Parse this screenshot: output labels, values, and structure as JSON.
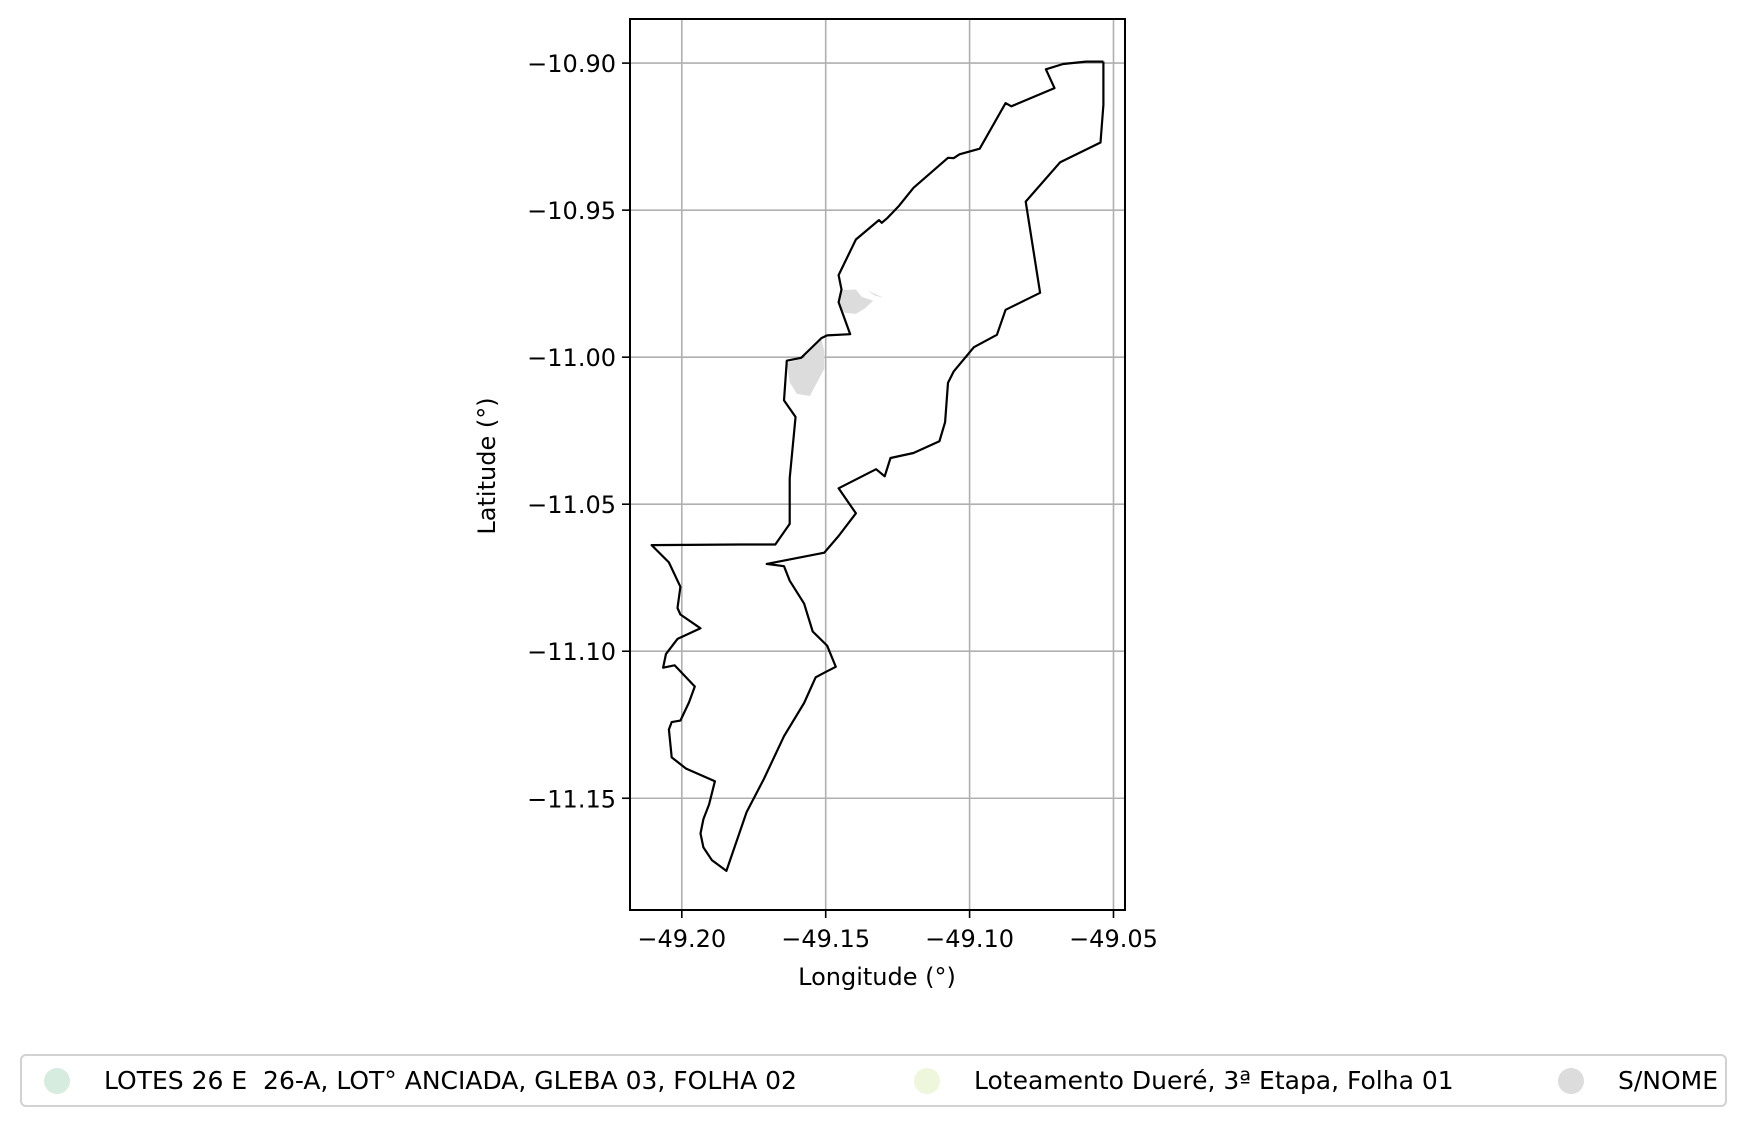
{
  "chart_data": {
    "type": "map",
    "xlabel": "Longitude (°)",
    "ylabel": "Latitude (°)",
    "xlim": [
      -49.218,
      -49.046
    ],
    "ylim": [
      -11.188,
      -10.885
    ],
    "grid": true,
    "x_ticks": [
      -49.2,
      -49.15,
      -49.1,
      -49.05
    ],
    "x_tick_labels": [
      "−49.20",
      "−49.15",
      "−49.10",
      "−49.05"
    ],
    "y_ticks": [
      -10.9,
      -10.95,
      -11.0,
      -11.05,
      -11.1,
      -11.15
    ],
    "y_tick_labels": [
      "−10.90",
      "−10.95",
      "−11.00",
      "−11.05",
      "−11.10",
      "−11.15"
    ],
    "boundary": [
      [
        -49.0535,
        -10.8995
      ],
      [
        -49.0535,
        -10.9142
      ],
      [
        -49.0545,
        -10.927
      ],
      [
        -49.0685,
        -10.9337
      ],
      [
        -49.0805,
        -10.9471
      ],
      [
        -49.0755,
        -10.9781
      ],
      [
        -49.0875,
        -10.9839
      ],
      [
        -49.0905,
        -10.9924
      ],
      [
        -49.0985,
        -10.9966
      ],
      [
        -49.1055,
        -11.0048
      ],
      [
        -49.1075,
        -11.0087
      ],
      [
        -49.1085,
        -11.0221
      ],
      [
        -49.1105,
        -11.0286
      ],
      [
        -49.1195,
        -11.0326
      ],
      [
        -49.1275,
        -11.0343
      ],
      [
        -49.1295,
        -11.0405
      ],
      [
        -49.1325,
        -11.0381
      ],
      [
        -49.1455,
        -11.0446
      ],
      [
        -49.1395,
        -11.0531
      ],
      [
        -49.1455,
        -11.0608
      ],
      [
        -49.1505,
        -11.0665
      ],
      [
        -49.1705,
        -11.0703
      ],
      [
        -49.1645,
        -11.0711
      ],
      [
        -49.1625,
        -11.076
      ],
      [
        -49.1575,
        -11.0838
      ],
      [
        -49.1545,
        -11.0933
      ],
      [
        -49.1495,
        -11.0981
      ],
      [
        -49.1465,
        -11.1053
      ],
      [
        -49.1505,
        -11.1073
      ],
      [
        -49.1535,
        -11.1089
      ],
      [
        -49.1575,
        -11.1176
      ],
      [
        -49.1645,
        -11.1289
      ],
      [
        -49.1715,
        -11.1435
      ],
      [
        -49.1775,
        -11.1547
      ],
      [
        -49.1845,
        -11.1747
      ],
      [
        -49.1895,
        -11.1711
      ],
      [
        -49.1925,
        -11.1667
      ],
      [
        -49.1935,
        -11.162
      ],
      [
        -49.1925,
        -11.1571
      ],
      [
        -49.1905,
        -11.1521
      ],
      [
        -49.1885,
        -11.1442
      ],
      [
        -49.1985,
        -11.1399
      ],
      [
        -49.2035,
        -11.1361
      ],
      [
        -49.2045,
        -11.1266
      ],
      [
        -49.2035,
        -11.1241
      ],
      [
        -49.2005,
        -11.1236
      ],
      [
        -49.1975,
        -11.1174
      ],
      [
        -49.1955,
        -11.112
      ],
      [
        -49.2025,
        -11.1048
      ],
      [
        -49.2065,
        -11.1056
      ],
      [
        -49.2055,
        -11.1009
      ],
      [
        -49.2015,
        -11.0958
      ],
      [
        -49.1935,
        -11.0922
      ],
      [
        -49.2005,
        -11.0875
      ],
      [
        -49.2015,
        -11.0853
      ],
      [
        -49.2005,
        -11.0781
      ],
      [
        -49.2045,
        -11.0698
      ],
      [
        -49.2105,
        -11.0639
      ],
      [
        -49.1795,
        -11.0637
      ],
      [
        -49.1675,
        -11.0637
      ],
      [
        -49.1625,
        -11.0567
      ],
      [
        -49.1625,
        -11.0412
      ],
      [
        -49.1605,
        -11.0205
      ],
      [
        -49.1605,
        -11.0203
      ],
      [
        -49.1645,
        -11.0147
      ],
      [
        -49.1635,
        -11.0012
      ],
      [
        -49.1585,
        -11.0002
      ],
      [
        -49.1515,
        -10.9935
      ],
      [
        -49.1495,
        -10.9926
      ],
      [
        -49.1415,
        -10.9922
      ],
      [
        -49.1455,
        -10.9813
      ],
      [
        -49.1445,
        -10.977
      ],
      [
        -49.1455,
        -10.9721
      ],
      [
        -49.1395,
        -10.96
      ],
      [
        -49.1315,
        -10.9534
      ],
      [
        -49.1305,
        -10.9543
      ],
      [
        -49.1285,
        -10.9526
      ],
      [
        -49.1245,
        -10.9485
      ],
      [
        -49.1195,
        -10.9424
      ],
      [
        -49.1075,
        -10.9322
      ],
      [
        -49.1055,
        -10.9323
      ],
      [
        -49.1035,
        -10.931
      ],
      [
        -49.0965,
        -10.9291
      ],
      [
        -49.0875,
        -10.9136
      ],
      [
        -49.0855,
        -10.9147
      ],
      [
        -49.0705,
        -10.9085
      ],
      [
        -49.0735,
        -10.9021
      ],
      [
        -49.0675,
        -10.9003
      ],
      [
        -49.0595,
        -10.8995
      ],
      [
        -49.0535,
        -10.8995
      ]
    ],
    "filled_areas": [
      {
        "name": "S/NOME",
        "color": "#dcdcdc",
        "coords": [
          [
            -49.1445,
            -10.9772
          ],
          [
            -49.1395,
            -10.977
          ],
          [
            -49.1375,
            -10.9795
          ],
          [
            -49.1335,
            -10.9808
          ],
          [
            -49.1365,
            -10.9835
          ],
          [
            -49.1395,
            -10.9853
          ],
          [
            -49.1435,
            -10.9849
          ],
          [
            -49.1455,
            -10.9818
          ]
        ]
      },
      {
        "name": "S/NOME",
        "color": "#dcdcdc",
        "coords": [
          [
            -49.1515,
            -10.9938
          ],
          [
            -49.1575,
            -11.0002
          ],
          [
            -49.1635,
            -11.002
          ],
          [
            -49.1625,
            -11.0085
          ],
          [
            -49.16,
            -11.0125
          ],
          [
            -49.1555,
            -11.0132
          ],
          [
            -49.1535,
            -11.0095
          ],
          [
            -49.1505,
            -11.004
          ],
          [
            -49.1505,
            -10.998
          ]
        ]
      },
      {
        "name": "S/NOME",
        "color": "#dcdcdc",
        "coords": [
          [
            -49.1355,
            -10.9773
          ],
          [
            -49.13,
            -10.9798
          ],
          [
            -49.133,
            -10.979
          ]
        ]
      }
    ],
    "legend": {
      "placement": "bottom",
      "entries": [
        {
          "label": "LOTES 26 E  26-A, LOT° ANCIADA, GLEBA 03, FOLHA 02",
          "color": "#d6ecdf"
        },
        {
          "label": "Loteamento Dueré, 3ª Etapa, Folha 01",
          "color": "#eef7dc"
        },
        {
          "label": "S/NOME",
          "color": "#dcdcdc"
        }
      ]
    }
  }
}
